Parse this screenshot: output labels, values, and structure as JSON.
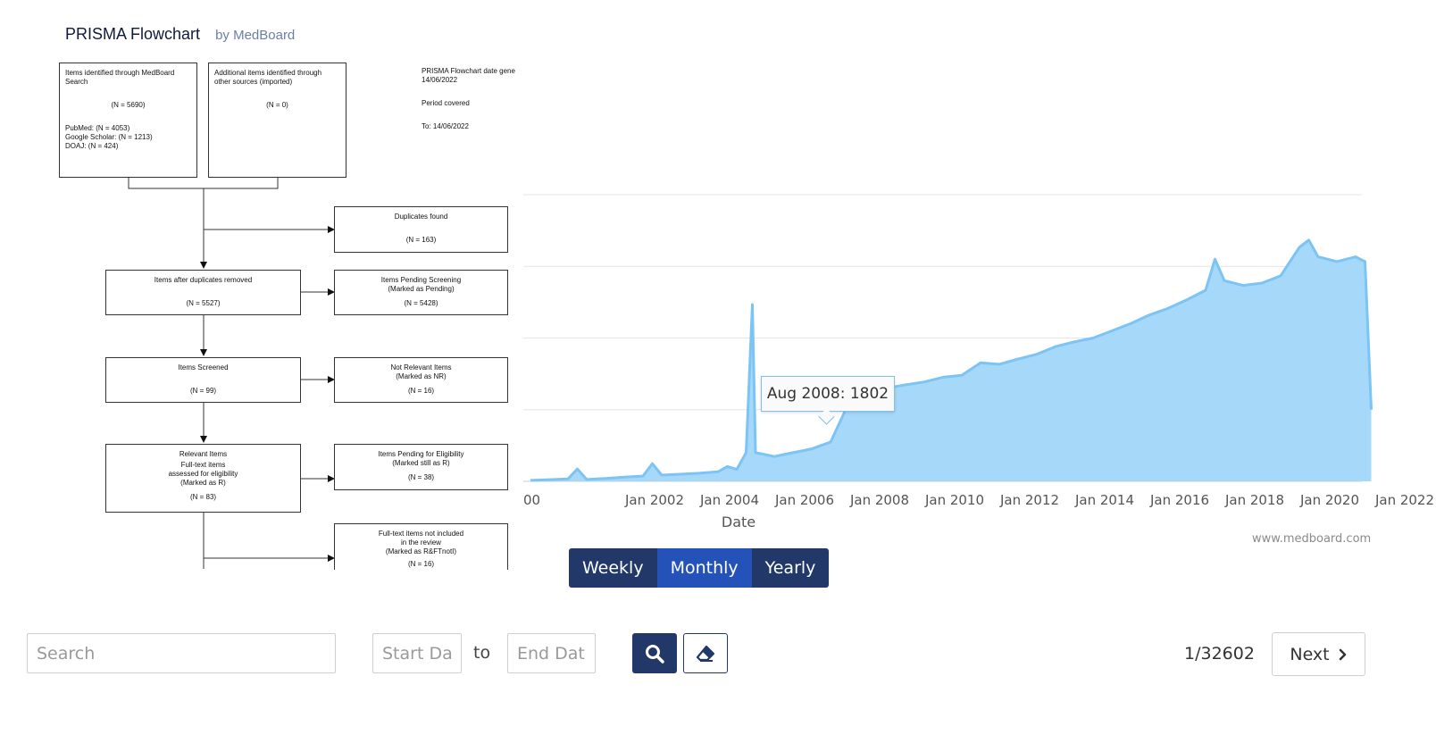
{
  "header": {
    "title": "PRISMA Flowchart",
    "by": "by MedBoard"
  },
  "prisma": {
    "identified": {
      "line1": "Items identified through MedBoard",
      "line2": "Search",
      "count": "(N = 5690)",
      "pubmed": "PubMed: (N = 4053)",
      "scholar": "Google Scholar: (N = 1213)",
      "doaj": "DOAJ: (N = 424)"
    },
    "additional": {
      "line1": "Additional items identified through",
      "line2": "other sources (imported)",
      "count": "(N = 0)"
    },
    "meta": {
      "date_label": "PRISMA Flowchart date gene",
      "date": "14/06/2022",
      "period": "Period covered",
      "to": "To: 14/06/2022"
    },
    "duplicates": {
      "label": "Duplicates found",
      "count": "(N = 163)"
    },
    "after_dup": {
      "label": "Items after duplicates removed",
      "count": "(N = 5527)"
    },
    "pending_screening": {
      "line1": "Items Pending Screening",
      "line2": "(Marked as Pending)",
      "count": "(N = 5428)"
    },
    "screened": {
      "label": "Items Screened",
      "count": "(N = 99)"
    },
    "not_relevant": {
      "line1": "Not Relevant Items",
      "line2": "(Marked as NR)",
      "count": "(N = 16)"
    },
    "relevant": {
      "line1": "Relevant Items",
      "line2": "Full-text items",
      "line3": "assessed for eligibility",
      "line4": "(Marked as R)",
      "count": "(N = 83)"
    },
    "pending_eligibility": {
      "line1": "Items Pending for Eligibility",
      "line2": "(Marked still as R)",
      "count": "(N = 38)"
    },
    "not_included": {
      "line1": "Full-text items not included",
      "line2": "in the review",
      "line3": "(Marked as R&FTnotI)",
      "count": "(N = 16)"
    }
  },
  "chart_data": {
    "type": "area",
    "xlabel": "Date",
    "x_ticks": [
      "00",
      "Jan 2002",
      "Jan 2004",
      "Jan 2006",
      "Jan 2008",
      "Jan 2010",
      "Jan 2012",
      "Jan 2014",
      "Jan 2016",
      "Jan 2018",
      "Jan 2020",
      "Jan 2022"
    ],
    "grid": true,
    "color": "#7cc4f5",
    "fill": "#a6d8fa",
    "tooltip": "Aug 2008: 1802",
    "highlight": {
      "x": "2008-08",
      "y": 1802
    },
    "series": [
      {
        "x": [
          "2000-01",
          "2000-07",
          "2001-01",
          "2001-04",
          "2001-07",
          "2002-01",
          "2002-07",
          "2003-01",
          "2003-04",
          "2003-07",
          "2004-01",
          "2004-07",
          "2005-01",
          "2005-04",
          "2005-07",
          "2005-10",
          "2005-12",
          "2006-01",
          "2006-04",
          "2006-07",
          "2006-10",
          "2007-01",
          "2007-07",
          "2008-01",
          "2008-08",
          "2009-01",
          "2009-07",
          "2010-01",
          "2010-07",
          "2011-01",
          "2011-07",
          "2012-01",
          "2012-07",
          "2013-01",
          "2013-07",
          "2014-01",
          "2014-07",
          "2015-01",
          "2015-07",
          "2016-01",
          "2016-07",
          "2017-01",
          "2017-07",
          "2018-01",
          "2018-04",
          "2018-07",
          "2019-01",
          "2019-07",
          "2020-01",
          "2020-07",
          "2020-10",
          "2021-01",
          "2021-04",
          "2021-07",
          "2022-01",
          "2022-04",
          "2022-06"
        ],
        "y": [
          20,
          35,
          50,
          260,
          40,
          60,
          90,
          110,
          370,
          130,
          150,
          170,
          200,
          310,
          250,
          600,
          3700,
          600,
          560,
          520,
          560,
          600,
          680,
          820,
          1802,
          1920,
          1950,
          2020,
          2080,
          2180,
          2220,
          2480,
          2450,
          2560,
          2660,
          2820,
          2920,
          3000,
          3150,
          3300,
          3480,
          3620,
          3800,
          4000,
          4650,
          4200,
          4100,
          4150,
          4300,
          4900,
          5050,
          4700,
          4650,
          4600,
          4700,
          4600,
          1500
        ]
      }
    ]
  },
  "period_toggle": {
    "options": [
      "Weekly",
      "Monthly",
      "Yearly"
    ],
    "selected": "Monthly"
  },
  "credit": "www.medboard.com",
  "toolbar": {
    "search_placeholder": "Search",
    "start_placeholder": "Start Date",
    "to": "to",
    "end_placeholder": "End Date",
    "page_counter": "1/32602",
    "next_label": "Next"
  }
}
